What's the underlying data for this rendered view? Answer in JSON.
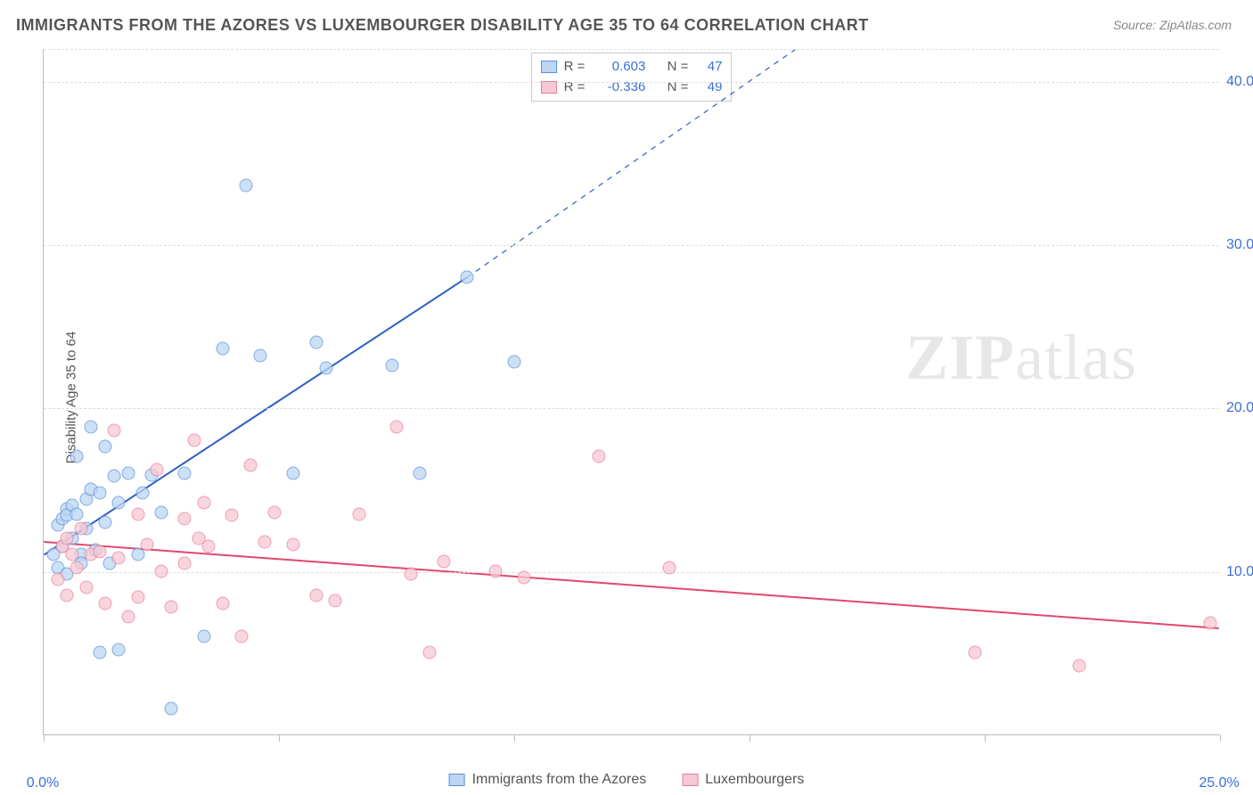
{
  "title": "IMMIGRANTS FROM THE AZORES VS LUXEMBOURGER DISABILITY AGE 35 TO 64 CORRELATION CHART",
  "source": "Source: ZipAtlas.com",
  "ylabel": "Disability Age 35 to 64",
  "watermark_a": "ZIP",
  "watermark_b": "atlas",
  "chart": {
    "type": "scatter",
    "xlim": [
      0,
      25
    ],
    "ylim": [
      0,
      42
    ],
    "x_ticks": [
      0,
      5,
      10,
      15,
      20,
      25
    ],
    "x_tick_labels": {
      "0": "0.0%",
      "25": "25.0%"
    },
    "y_ticks": [
      10,
      20,
      30,
      40
    ],
    "y_tick_labels": {
      "10": "10.0%",
      "20": "20.0%",
      "30": "30.0%",
      "40": "40.0%"
    },
    "grid_color": "#dddddd",
    "background_color": "#ffffff",
    "series": [
      {
        "name": "Immigrants from the Azores",
        "key": "azores",
        "fill": "#bcd6f4",
        "stroke": "#5a8fd6",
        "R": "0.603",
        "N": "47",
        "trend": {
          "x1": 0,
          "y1": 11.0,
          "x2_solid": 9.0,
          "y2_solid": 28.0,
          "x2_dash": 16.0,
          "y2_dash": 42.0,
          "color": "#2f5fc4",
          "width": 2
        },
        "points": [
          [
            0.2,
            11.0
          ],
          [
            0.3,
            10.2
          ],
          [
            0.3,
            12.8
          ],
          [
            0.4,
            13.2
          ],
          [
            0.4,
            11.5
          ],
          [
            0.5,
            9.8
          ],
          [
            0.5,
            13.8
          ],
          [
            0.5,
            13.4
          ],
          [
            0.6,
            14.0
          ],
          [
            0.6,
            12.0
          ],
          [
            0.7,
            17.0
          ],
          [
            0.7,
            13.5
          ],
          [
            0.8,
            11.0
          ],
          [
            0.8,
            10.5
          ],
          [
            0.9,
            14.4
          ],
          [
            0.9,
            12.6
          ],
          [
            1.0,
            18.8
          ],
          [
            1.0,
            15.0
          ],
          [
            1.1,
            11.3
          ],
          [
            1.2,
            14.8
          ],
          [
            1.2,
            5.0
          ],
          [
            1.3,
            13.0
          ],
          [
            1.3,
            17.6
          ],
          [
            1.4,
            10.5
          ],
          [
            1.5,
            15.8
          ],
          [
            1.6,
            14.2
          ],
          [
            1.6,
            5.2
          ],
          [
            1.8,
            16.0
          ],
          [
            2.0,
            11.0
          ],
          [
            2.1,
            14.8
          ],
          [
            2.3,
            15.9
          ],
          [
            2.5,
            13.6
          ],
          [
            2.7,
            1.6
          ],
          [
            3.0,
            16.0
          ],
          [
            3.4,
            6.0
          ],
          [
            3.8,
            23.6
          ],
          [
            4.3,
            33.6
          ],
          [
            4.6,
            23.2
          ],
          [
            5.8,
            24.0
          ],
          [
            6.0,
            22.4
          ],
          [
            5.3,
            16.0
          ],
          [
            7.4,
            22.6
          ],
          [
            8.0,
            16.0
          ],
          [
            9.0,
            28.0
          ],
          [
            10.0,
            22.8
          ]
        ]
      },
      {
        "name": "Luxembourgers",
        "key": "lux",
        "fill": "#f7c9d4",
        "stroke": "#e77ba0",
        "R": "-0.336",
        "N": "49",
        "trend": {
          "x1": 0,
          "y1": 11.8,
          "x2_solid": 25.0,
          "y2_solid": 6.5,
          "color": "#e0486f",
          "width": 2
        },
        "points": [
          [
            0.3,
            9.5
          ],
          [
            0.4,
            11.5
          ],
          [
            0.5,
            12.0
          ],
          [
            0.5,
            8.5
          ],
          [
            0.6,
            11.0
          ],
          [
            0.7,
            10.2
          ],
          [
            0.8,
            12.6
          ],
          [
            0.9,
            9.0
          ],
          [
            1.0,
            11.0
          ],
          [
            1.2,
            11.2
          ],
          [
            1.3,
            8.0
          ],
          [
            1.5,
            18.6
          ],
          [
            1.6,
            10.8
          ],
          [
            1.8,
            7.2
          ],
          [
            2.0,
            13.5
          ],
          [
            2.0,
            8.4
          ],
          [
            2.2,
            11.6
          ],
          [
            2.4,
            16.2
          ],
          [
            2.5,
            10.0
          ],
          [
            2.7,
            7.8
          ],
          [
            3.0,
            13.2
          ],
          [
            3.0,
            10.5
          ],
          [
            3.2,
            18.0
          ],
          [
            3.3,
            12.0
          ],
          [
            3.4,
            14.2
          ],
          [
            3.5,
            11.5
          ],
          [
            3.8,
            8.0
          ],
          [
            4.0,
            13.4
          ],
          [
            4.2,
            6.0
          ],
          [
            4.4,
            16.5
          ],
          [
            4.7,
            11.8
          ],
          [
            4.9,
            13.6
          ],
          [
            5.3,
            11.6
          ],
          [
            5.8,
            8.5
          ],
          [
            6.2,
            8.2
          ],
          [
            6.7,
            13.5
          ],
          [
            7.5,
            18.8
          ],
          [
            7.8,
            9.8
          ],
          [
            8.2,
            5.0
          ],
          [
            8.5,
            10.6
          ],
          [
            9.6,
            10.0
          ],
          [
            10.2,
            9.6
          ],
          [
            11.8,
            17.0
          ],
          [
            13.3,
            10.2
          ],
          [
            19.8,
            5.0
          ],
          [
            22.0,
            4.2
          ],
          [
            24.8,
            6.8
          ]
        ]
      }
    ]
  },
  "legend_bottom": [
    {
      "swatch_fill": "#bcd6f4",
      "swatch_stroke": "#5a8fd6",
      "label": "Immigrants from the Azores"
    },
    {
      "swatch_fill": "#f7c9d4",
      "swatch_stroke": "#e77ba0",
      "label": "Luxembourgers"
    }
  ],
  "legend_top_labels": {
    "R": "R =",
    "N": "N ="
  }
}
